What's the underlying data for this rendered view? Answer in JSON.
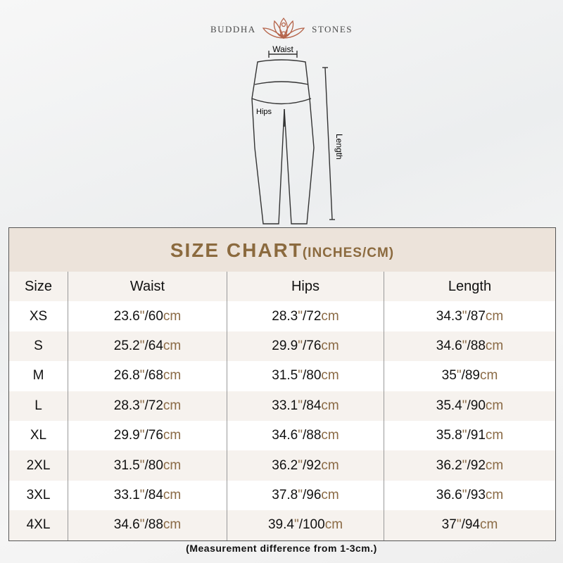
{
  "brand": {
    "left": "BUDDHA",
    "right": "STONES"
  },
  "diagram": {
    "waist": "Waist",
    "hips": "Hips",
    "length": "Length"
  },
  "title": {
    "main": "SIZE CHART",
    "sub": "(INCHES/CM)"
  },
  "columns": [
    "Size",
    "Waist",
    "Hips",
    "Length"
  ],
  "rows": [
    {
      "size": "XS",
      "waist": [
        "23.6",
        "60"
      ],
      "hips": [
        "28.3",
        "72"
      ],
      "length": [
        "34.3",
        "87"
      ]
    },
    {
      "size": "S",
      "waist": [
        "25.2",
        "64"
      ],
      "hips": [
        "29.9",
        "76"
      ],
      "length": [
        "34.6",
        "88"
      ]
    },
    {
      "size": "M",
      "waist": [
        "26.8",
        "68"
      ],
      "hips": [
        "31.5",
        "80"
      ],
      "length": [
        "35",
        "89"
      ]
    },
    {
      "size": "L",
      "waist": [
        "28.3",
        "72"
      ],
      "hips": [
        "33.1",
        "84"
      ],
      "length": [
        "35.4",
        "90"
      ]
    },
    {
      "size": "XL",
      "waist": [
        "29.9",
        "76"
      ],
      "hips": [
        "34.6",
        "88"
      ],
      "length": [
        "35.8",
        "91"
      ]
    },
    {
      "size": "2XL",
      "waist": [
        "31.5",
        "80"
      ],
      "hips": [
        "36.2",
        "92"
      ],
      "length": [
        "36.2",
        "92"
      ]
    },
    {
      "size": "3XL",
      "waist": [
        "33.1",
        "84"
      ],
      "hips": [
        "37.8",
        "96"
      ],
      "length": [
        "36.6",
        "93"
      ]
    },
    {
      "size": "4XL",
      "waist": [
        "34.6",
        "88"
      ],
      "hips": [
        "39.4",
        "100"
      ],
      "length": [
        "37",
        "94"
      ]
    }
  ],
  "units": {
    "inch": "\"",
    "cm": "cm"
  },
  "note": "(Measurement difference from 1-3cm.)",
  "colors": {
    "accent": "#8b6a3e",
    "band": "#ece3da",
    "logo": "#b5644a"
  }
}
